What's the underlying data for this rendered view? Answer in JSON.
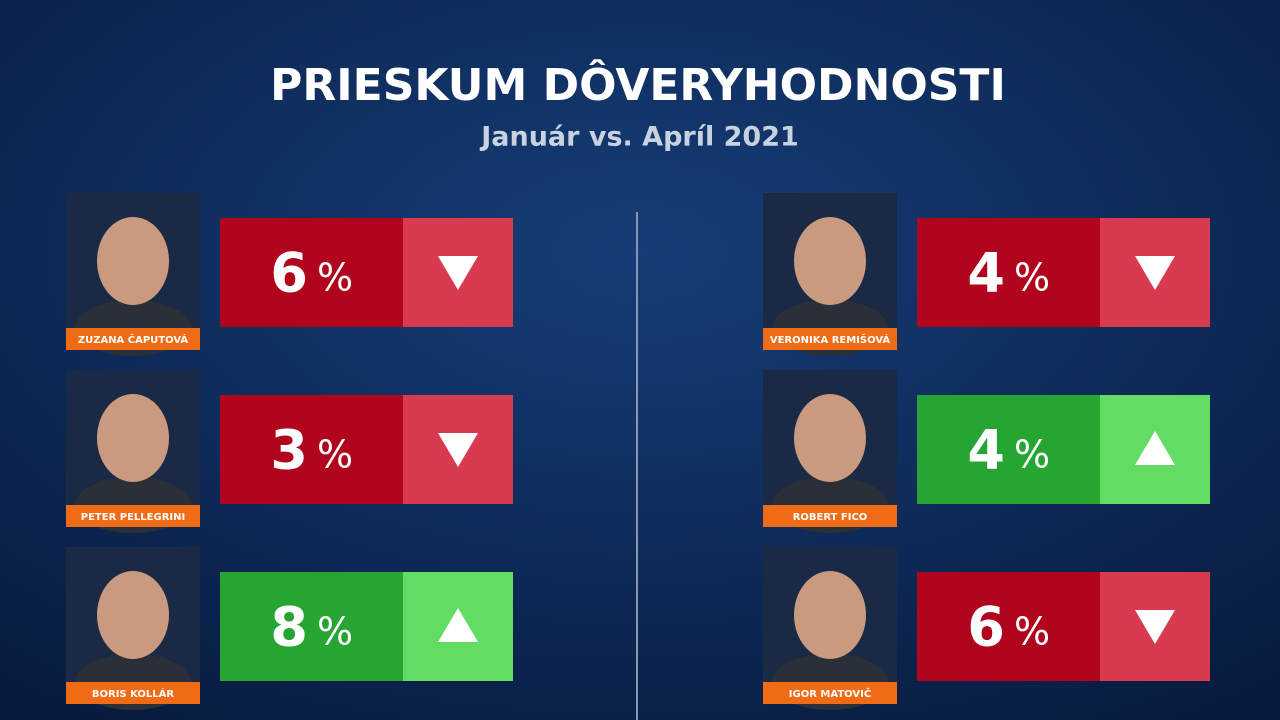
{
  "header": {
    "title": "PRIESKUM DÔVERYHODNOSTI",
    "subtitle": "Január vs. Apríl 2021"
  },
  "people": [
    {
      "name": "ZUZANA ČAPUTOVÁ",
      "change": 6,
      "unit": "%",
      "direction": "down"
    },
    {
      "name": "PETER PELLEGRINI",
      "change": 3,
      "unit": "%",
      "direction": "down"
    },
    {
      "name": "BORIS KOLLÁR",
      "change": 8,
      "unit": "%",
      "direction": "up"
    },
    {
      "name": "VERONIKA REMIŠOVÁ",
      "change": 4,
      "unit": "%",
      "direction": "down"
    },
    {
      "name": "ROBERT FICO",
      "change": 4,
      "unit": "%",
      "direction": "up"
    },
    {
      "name": "IGOR MATOVIČ",
      "change": 6,
      "unit": "%",
      "direction": "down"
    }
  ]
}
